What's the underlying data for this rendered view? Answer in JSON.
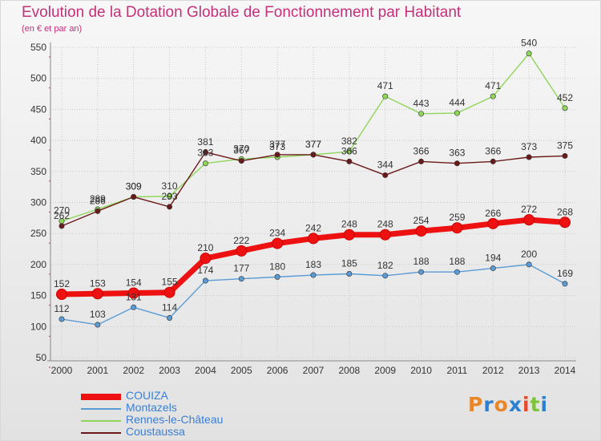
{
  "title": "Evolution de la Dotation Globale de Fonctionnement par Habitant",
  "subtitle": "(en € et par an)",
  "logo_text": "Proxiti",
  "logo_colors": [
    "#e8862a",
    "#2d7fd1",
    "#e8862a",
    "#2d7fd1",
    "#e84a2a",
    "#7cc43a",
    "#2d7fd1"
  ],
  "chart_data": {
    "type": "line",
    "x": [
      "2000",
      "2001",
      "2002",
      "2003",
      "2004",
      "2005",
      "2006",
      "2007",
      "2008",
      "2009",
      "2010",
      "2011",
      "2012",
      "2013",
      "2014"
    ],
    "ylim": [
      50,
      550
    ],
    "yticks": [
      "50",
      "100",
      "150",
      "200",
      "250",
      "300",
      "350",
      "400",
      "450",
      "500",
      "550"
    ],
    "grid": true,
    "legend_position": "bottom-left",
    "series": [
      {
        "name": "COUIZA",
        "color": "#ee1111",
        "values": [
          152,
          153,
          154,
          155,
          210,
          222,
          234,
          242,
          248,
          248,
          254,
          259,
          266,
          272,
          268
        ]
      },
      {
        "name": "Montazels",
        "color": "#5b9bd5",
        "values": [
          112,
          103,
          131,
          114,
          174,
          177,
          180,
          183,
          185,
          182,
          188,
          188,
          194,
          200,
          169
        ]
      },
      {
        "name": "Rennes-le-Château",
        "color": "#8fd65a",
        "values": [
          270,
          289,
          309,
          310,
          363,
          370,
          373,
          377,
          382,
          471,
          443,
          444,
          471,
          540,
          452
        ]
      },
      {
        "name": "Coustaussa",
        "color": "#6b1a1a",
        "values": [
          262,
          286,
          309,
          293,
          381,
          367,
          377,
          377,
          366,
          344,
          366,
          363,
          366,
          373,
          375
        ]
      }
    ]
  }
}
